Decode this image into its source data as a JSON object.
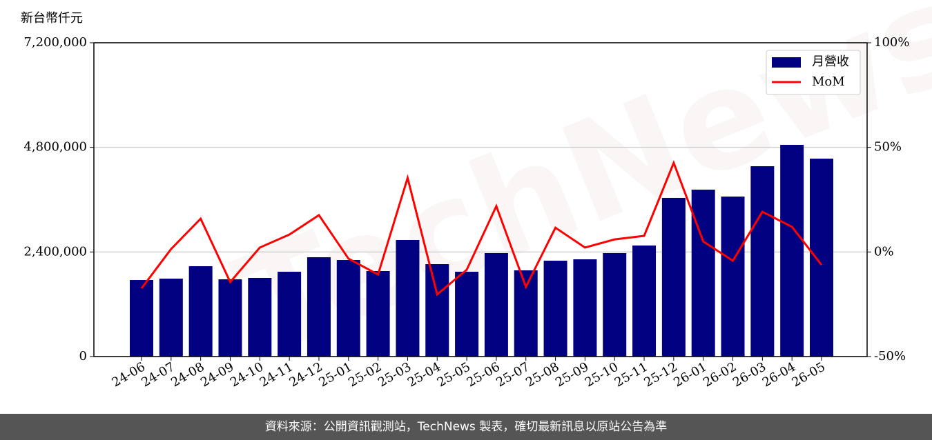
{
  "chart_data": {
    "type": "bar",
    "ylabel": "新台幣仟元",
    "watermark": "TechNews",
    "footer": "資料來源：公開資訊觀測站，TechNews 製表，確切最新訊息以原站公告為準",
    "categories": [
      "24-06",
      "24-07",
      "24-08",
      "24-09",
      "24-10",
      "24-11",
      "24-12",
      "25-01",
      "25-02",
      "25-03",
      "25-04",
      "25-05",
      "25-06",
      "25-07",
      "25-08",
      "25-09",
      "25-10",
      "25-11",
      "25-12",
      "26-01",
      "26-02",
      "26-03",
      "26-04",
      "26-05"
    ],
    "series": [
      {
        "name": "月營收",
        "type": "bar",
        "color": "#000080",
        "values": [
          1756000,
          1788000,
          2073000,
          1772000,
          1804000,
          1946000,
          2279000,
          2215000,
          1962000,
          2674000,
          2120000,
          1946000,
          2374000,
          1978000,
          2200000,
          2231000,
          2374000,
          2548000,
          3640000,
          3830000,
          3671000,
          4367000,
          4858000,
          4541000
        ]
      },
      {
        "name": "MoM",
        "type": "line",
        "axis": "y2",
        "color": "#ff0000",
        "values": [
          -17.4,
          1.4,
          15.9,
          -14.4,
          2.1,
          8.3,
          17.6,
          -3.2,
          -10.8,
          35.4,
          -20.3,
          -8.5,
          21.9,
          -16.7,
          11.6,
          2.1,
          6.0,
          7.7,
          42.6,
          5.0,
          -4.2,
          19.2,
          12.0,
          -6.2
        ]
      }
    ],
    "ylim": [
      0,
      7200000
    ],
    "yticks": [
      {
        "value": 0,
        "label": "0"
      },
      {
        "value": 2400000,
        "label": "2,400,000"
      },
      {
        "value": 4800000,
        "label": "4,800,000"
      },
      {
        "value": 7200000,
        "label": "7,200,000"
      }
    ],
    "y2lim": [
      -50,
      100
    ],
    "y2ticks": [
      {
        "value": -50,
        "label": "-50%"
      },
      {
        "value": 0,
        "label": "0%"
      },
      {
        "value": 50,
        "label": "50%"
      },
      {
        "value": 100,
        "label": "100%"
      }
    ],
    "grid": true,
    "legend": "upper right"
  }
}
